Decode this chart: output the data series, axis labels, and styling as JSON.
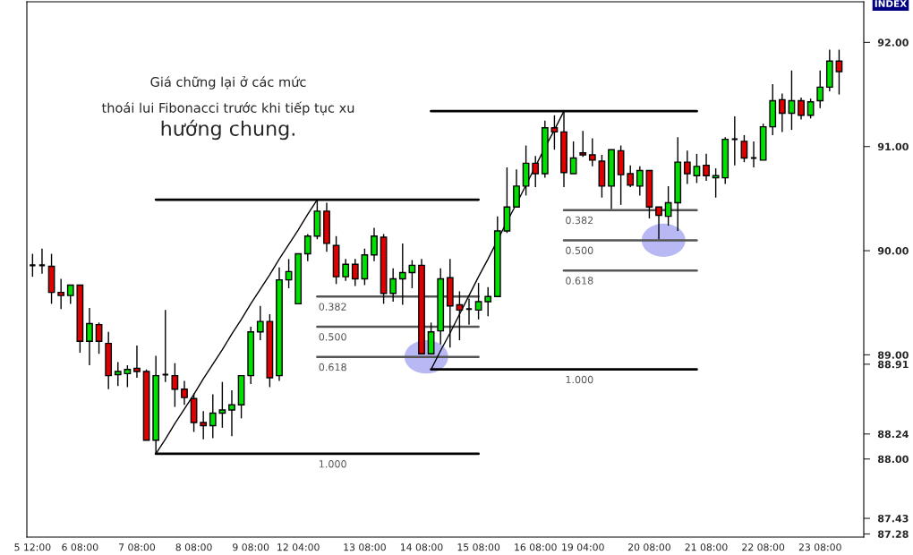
{
  "chart_data": {
    "type": "candlestick",
    "categories": [
      "5 12:00",
      null,
      null,
      null,
      null,
      "6 08:00",
      null,
      null,
      null,
      null,
      null,
      "7 08:00",
      null,
      null,
      null,
      null,
      null,
      "8 08:00",
      null,
      null,
      null,
      null,
      null,
      "9 08:00",
      null,
      null,
      null,
      null,
      "12 04:00",
      null,
      null,
      null,
      null,
      null,
      null,
      "13 08:00",
      null,
      null,
      null,
      null,
      null,
      "14 08:00",
      null,
      null,
      null,
      null,
      null,
      "15 08:00",
      null,
      null,
      null,
      null,
      null,
      "16 08:00",
      null,
      null,
      null,
      null,
      "19 04:00",
      null,
      null,
      null,
      null,
      null,
      null,
      "20 08:00",
      null,
      null,
      null,
      null,
      null,
      "21 08:00",
      null,
      null,
      null,
      null,
      null,
      "22 08:00",
      null,
      null,
      null,
      null,
      null,
      "23 08:00",
      null,
      null
    ],
    "ohlc": [
      [
        89.86,
        89.97,
        89.75,
        89.86
      ],
      [
        89.86,
        90.02,
        89.78,
        89.86
      ],
      [
        89.85,
        89.97,
        89.49,
        89.6
      ],
      [
        89.6,
        89.73,
        89.44,
        89.57
      ],
      [
        89.57,
        89.67,
        89.49,
        89.67
      ],
      [
        89.67,
        89.67,
        89.02,
        89.13
      ],
      [
        89.13,
        89.45,
        88.9,
        89.3
      ],
      [
        89.29,
        89.31,
        89.01,
        89.13
      ],
      [
        89.11,
        89.22,
        88.67,
        88.8
      ],
      [
        88.81,
        88.93,
        88.7,
        88.84
      ],
      [
        88.82,
        88.9,
        88.69,
        88.86
      ],
      [
        88.87,
        89.09,
        88.78,
        88.84
      ],
      [
        88.84,
        88.86,
        88.18,
        88.18
      ],
      [
        88.18,
        88.99,
        88.05,
        88.8
      ],
      [
        88.81,
        89.43,
        88.74,
        88.81
      ],
      [
        88.8,
        88.92,
        88.5,
        88.67
      ],
      [
        88.67,
        88.75,
        88.52,
        88.59
      ],
      [
        88.58,
        88.63,
        88.26,
        88.35
      ],
      [
        88.35,
        88.46,
        88.19,
        88.32
      ],
      [
        88.32,
        88.62,
        88.2,
        88.44
      ],
      [
        88.44,
        88.74,
        88.3,
        88.47
      ],
      [
        88.47,
        88.66,
        88.22,
        88.52
      ],
      [
        88.52,
        88.8,
        88.39,
        88.8
      ],
      [
        88.8,
        89.27,
        88.72,
        89.22
      ],
      [
        89.22,
        89.47,
        89.14,
        89.32
      ],
      [
        89.32,
        89.39,
        88.69,
        88.78
      ],
      [
        88.8,
        89.84,
        88.75,
        89.72
      ],
      [
        89.72,
        89.92,
        89.64,
        89.8
      ],
      [
        89.49,
        89.97,
        89.49,
        89.97
      ],
      [
        89.97,
        90.16,
        89.9,
        90.14
      ],
      [
        90.14,
        90.49,
        90.11,
        90.38
      ],
      [
        90.38,
        90.46,
        89.99,
        90.07
      ],
      [
        90.05,
        90.14,
        89.68,
        89.75
      ],
      [
        89.75,
        89.92,
        89.71,
        89.87
      ],
      [
        89.87,
        89.92,
        89.66,
        89.73
      ],
      [
        89.73,
        90.02,
        89.67,
        89.96
      ],
      [
        89.96,
        90.22,
        89.9,
        90.14
      ],
      [
        90.13,
        90.16,
        89.49,
        89.59
      ],
      [
        89.59,
        89.83,
        89.51,
        89.73
      ],
      [
        89.73,
        90.07,
        89.48,
        89.79
      ],
      [
        89.79,
        89.91,
        89.64,
        89.86
      ],
      [
        89.86,
        89.92,
        89.01,
        89.01
      ],
      [
        89.01,
        89.31,
        89.01,
        89.22
      ],
      [
        89.23,
        89.83,
        89.1,
        89.73
      ],
      [
        89.74,
        89.92,
        89.07,
        89.47
      ],
      [
        89.48,
        89.61,
        89.14,
        89.43
      ],
      [
        89.44,
        89.54,
        89.29,
        89.44
      ],
      [
        89.43,
        89.69,
        89.34,
        89.51
      ],
      [
        89.51,
        89.65,
        89.37,
        89.56
      ],
      [
        89.56,
        90.33,
        89.56,
        90.19
      ],
      [
        90.19,
        90.8,
        90.17,
        90.42
      ],
      [
        90.42,
        90.78,
        90.42,
        90.62
      ],
      [
        90.62,
        91.01,
        90.53,
        90.84
      ],
      [
        90.84,
        90.91,
        90.61,
        90.74
      ],
      [
        90.74,
        91.25,
        90.7,
        91.18
      ],
      [
        91.18,
        91.3,
        90.97,
        91.14
      ],
      [
        91.14,
        91.34,
        90.61,
        90.75
      ],
      [
        90.74,
        91.05,
        90.74,
        90.89
      ],
      [
        90.94,
        91.15,
        90.9,
        90.92
      ],
      [
        90.92,
        91.08,
        90.81,
        90.87
      ],
      [
        90.86,
        90.92,
        90.51,
        90.62
      ],
      [
        90.62,
        90.97,
        90.4,
        90.97
      ],
      [
        90.96,
        91.01,
        90.44,
        90.73
      ],
      [
        90.74,
        90.82,
        90.61,
        90.63
      ],
      [
        90.62,
        90.81,
        90.53,
        90.77
      ],
      [
        90.77,
        90.77,
        90.31,
        90.42
      ],
      [
        90.42,
        90.42,
        90.11,
        90.34
      ],
      [
        90.33,
        90.62,
        90.24,
        90.46
      ],
      [
        90.46,
        91.09,
        90.19,
        90.85
      ],
      [
        90.85,
        90.96,
        90.64,
        90.74
      ],
      [
        90.72,
        90.93,
        90.65,
        90.81
      ],
      [
        90.82,
        90.93,
        90.67,
        90.72
      ],
      [
        90.7,
        90.79,
        90.51,
        90.72
      ],
      [
        90.7,
        91.09,
        90.64,
        91.07
      ],
      [
        91.07,
        91.29,
        90.82,
        91.07
      ],
      [
        91.05,
        91.11,
        90.85,
        90.89
      ],
      [
        90.89,
        91.05,
        90.8,
        90.89
      ],
      [
        90.87,
        91.22,
        90.87,
        91.19
      ],
      [
        91.19,
        91.6,
        91.11,
        91.44
      ],
      [
        91.45,
        91.51,
        91.14,
        91.32
      ],
      [
        91.32,
        91.73,
        91.16,
        91.44
      ],
      [
        91.44,
        91.47,
        91.26,
        91.3
      ],
      [
        91.3,
        91.46,
        91.27,
        91.43
      ],
      [
        91.44,
        91.73,
        91.37,
        91.57
      ],
      [
        91.57,
        91.93,
        91.53,
        91.82
      ],
      [
        91.82,
        91.93,
        91.5,
        91.72
      ]
    ],
    "colors": [
      "#000000",
      "#000000",
      "#e00000",
      "#e00000",
      "#00e000",
      "#e00000",
      "#00e000",
      "#e00000",
      "#e00000",
      "#00e000",
      "#00e000",
      "#e00000",
      "#e00000",
      "#00e000",
      "#000000",
      "#e00000",
      "#e00000",
      "#e00000",
      "#e00000",
      "#00e000",
      "#00e000",
      "#00e000",
      "#00e000",
      "#00e000",
      "#00e000",
      "#e00000",
      "#00e000",
      "#00e000",
      "#00e000",
      "#00e000",
      "#00e000",
      "#e00000",
      "#e00000",
      "#00e000",
      "#e00000",
      "#00e000",
      "#00e000",
      "#e00000",
      "#00e000",
      "#00e000",
      "#00e000",
      "#e00000",
      "#00e000",
      "#00e000",
      "#e00000",
      "#e00000",
      "#000000",
      "#00e000",
      "#00e000",
      "#00e000",
      "#00e000",
      "#00e000",
      "#00e000",
      "#e00000",
      "#00e000",
      "#e00000",
      "#e00000",
      "#00e000",
      "#e00000",
      "#e00000",
      "#e00000",
      "#00e000",
      "#e00000",
      "#e00000",
      "#00e000",
      "#e00000",
      "#e00000",
      "#00e000",
      "#00e000",
      "#e00000",
      "#00e000",
      "#e00000",
      "#00e000",
      "#00e000",
      "#000000",
      "#e00000",
      "#000000",
      "#00e000",
      "#00e000",
      "#e00000",
      "#00e000",
      "#e00000",
      "#00e000",
      "#00e000",
      "#00e000",
      "#e00000"
    ],
    "series": [
      {
        "type": "line",
        "color": "#000000",
        "values": [
          null,
          null,
          null,
          null,
          null,
          null,
          null,
          null,
          null,
          null,
          null,
          null,
          null,
          90.49,
          90.49,
          90.49,
          90.49,
          90.49,
          90.49,
          90.49,
          90.49,
          90.49,
          90.49,
          90.49,
          90.49,
          90.49,
          90.49,
          90.49,
          90.49,
          90.49,
          90.49,
          90.49,
          90.49,
          90.49,
          90.49,
          90.49,
          90.49,
          90.49,
          90.49,
          90.49,
          90.49,
          90.49,
          90.49,
          90.49,
          90.49,
          90.49,
          90.49,
          90.49,
          null,
          null,
          null,
          null,
          null,
          null,
          null,
          null,
          null,
          null,
          null,
          null,
          null,
          null,
          null,
          null,
          null,
          null,
          null,
          null,
          null,
          null,
          null,
          null,
          null,
          null,
          null,
          null,
          null,
          null,
          null,
          null,
          null,
          null,
          null,
          null,
          null,
          null
        ]
      },
      {
        "type": "line",
        "color": "#555555",
        "values": [
          null,
          null,
          null,
          null,
          null,
          null,
          null,
          null,
          null,
          null,
          null,
          null,
          null,
          null,
          null,
          null,
          null,
          null,
          null,
          null,
          null,
          null,
          null,
          null,
          null,
          null,
          null,
          null,
          null,
          null,
          89.56,
          89.56,
          89.56,
          89.56,
          89.56,
          89.56,
          89.56,
          89.56,
          89.56,
          89.56,
          89.56,
          89.56,
          89.56,
          89.56,
          89.56,
          89.56,
          89.56,
          89.56,
          null,
          null,
          null,
          null,
          null,
          null,
          null,
          null,
          null,
          null,
          null,
          null,
          null,
          null,
          null,
          null,
          null,
          null,
          null,
          null,
          null,
          null,
          null,
          null,
          null,
          null,
          null,
          null,
          null,
          null,
          null,
          null,
          null,
          null,
          null,
          null,
          null,
          null
        ]
      },
      {
        "type": "line",
        "color": "#555555",
        "values": [
          null,
          null,
          null,
          null,
          null,
          null,
          null,
          null,
          null,
          null,
          null,
          null,
          null,
          null,
          null,
          null,
          null,
          null,
          null,
          null,
          null,
          null,
          null,
          null,
          null,
          null,
          null,
          null,
          null,
          null,
          89.27,
          89.27,
          89.27,
          89.27,
          89.27,
          89.27,
          89.27,
          89.27,
          89.27,
          89.27,
          89.27,
          89.27,
          89.27,
          89.27,
          89.27,
          89.27,
          89.27,
          89.27,
          null,
          null,
          null,
          null,
          null,
          null,
          null,
          null,
          null,
          null,
          null,
          null,
          null,
          null,
          null,
          null,
          null,
          null,
          null,
          null,
          null,
          null,
          null,
          null,
          null,
          null,
          null,
          null,
          null,
          null,
          null,
          null,
          null,
          null,
          null,
          null,
          null,
          null
        ]
      },
      {
        "type": "line",
        "color": "#555555",
        "values": [
          null,
          null,
          null,
          null,
          null,
          null,
          null,
          null,
          null,
          null,
          null,
          null,
          null,
          null,
          null,
          null,
          null,
          null,
          null,
          null,
          null,
          null,
          null,
          null,
          null,
          null,
          null,
          null,
          null,
          null,
          88.98,
          88.98,
          88.98,
          88.98,
          88.98,
          88.98,
          88.98,
          88.98,
          88.98,
          88.98,
          88.98,
          88.98,
          88.98,
          88.98,
          88.98,
          88.98,
          88.98,
          88.98,
          null,
          null,
          null,
          null,
          null,
          null,
          null,
          null,
          null,
          null,
          null,
          null,
          null,
          null,
          null,
          null,
          null,
          null,
          null,
          null,
          null,
          null,
          null,
          null,
          null,
          null,
          null,
          null,
          null,
          null,
          null,
          null,
          null,
          null,
          null,
          null,
          null,
          null
        ]
      },
      {
        "type": "line",
        "color": "#000000",
        "values": [
          null,
          null,
          null,
          null,
          null,
          null,
          null,
          null,
          null,
          null,
          null,
          null,
          null,
          88.05,
          88.05,
          88.05,
          88.05,
          88.05,
          88.05,
          88.05,
          88.05,
          88.05,
          88.05,
          88.05,
          88.05,
          88.05,
          88.05,
          88.05,
          88.05,
          88.05,
          88.05,
          88.05,
          88.05,
          88.05,
          88.05,
          88.05,
          88.05,
          88.05,
          88.05,
          88.05,
          88.05,
          88.05,
          88.05,
          88.05,
          88.05,
          88.05,
          88.05,
          88.05,
          null,
          null,
          null,
          null,
          null,
          null,
          null,
          null,
          null,
          null,
          null,
          null,
          null,
          null,
          null,
          null,
          null,
          null,
          null,
          null,
          null,
          null,
          null,
          null,
          null,
          null,
          null,
          null,
          null,
          null,
          null,
          null,
          null,
          null,
          null,
          null,
          null,
          null
        ]
      },
      {
        "type": "line",
        "color": "#000000",
        "values": [
          null,
          null,
          null,
          null,
          null,
          null,
          null,
          null,
          null,
          null,
          null,
          null,
          null,
          88.05,
          88.19,
          88.34,
          88.48,
          88.62,
          88.77,
          88.91,
          89.05,
          89.2,
          89.34,
          89.49,
          89.63,
          89.77,
          89.92,
          90.06,
          90.2,
          90.35,
          90.49,
          null,
          null,
          null,
          null,
          null,
          null,
          null,
          null,
          null,
          null,
          null,
          null,
          null,
          null,
          null,
          null,
          null,
          null,
          null,
          null,
          null,
          null,
          null,
          null,
          null,
          null,
          null,
          null,
          null,
          null,
          null,
          null,
          null,
          null,
          null,
          null,
          null,
          null,
          null,
          null,
          null,
          null,
          null,
          null,
          null,
          null,
          null,
          null,
          null,
          null,
          null,
          null,
          null,
          null,
          null
        ]
      },
      {
        "type": "line",
        "color": "#000000",
        "values": [
          null,
          null,
          null,
          null,
          null,
          null,
          null,
          null,
          null,
          null,
          null,
          null,
          null,
          null,
          null,
          null,
          null,
          null,
          null,
          null,
          null,
          null,
          null,
          null,
          null,
          null,
          null,
          null,
          null,
          null,
          null,
          null,
          null,
          null,
          null,
          null,
          null,
          null,
          null,
          null,
          null,
          null,
          91.34,
          91.34,
          91.34,
          91.34,
          91.34,
          91.34,
          91.34,
          91.34,
          91.34,
          91.34,
          91.34,
          91.34,
          91.34,
          91.34,
          91.34,
          91.34,
          91.34,
          91.34,
          91.34,
          91.34,
          91.34,
          91.34,
          91.34,
          91.34,
          91.34,
          91.34,
          91.34,
          91.34,
          91.34,
          null,
          null,
          null,
          null,
          null,
          null,
          null,
          null,
          null,
          null,
          null,
          null,
          null,
          null,
          null
        ]
      },
      {
        "type": "line",
        "color": "#555555",
        "values": [
          null,
          null,
          null,
          null,
          null,
          null,
          null,
          null,
          null,
          null,
          null,
          null,
          null,
          null,
          null,
          null,
          null,
          null,
          null,
          null,
          null,
          null,
          null,
          null,
          null,
          null,
          null,
          null,
          null,
          null,
          null,
          null,
          null,
          null,
          null,
          null,
          null,
          null,
          null,
          null,
          null,
          null,
          null,
          null,
          null,
          null,
          null,
          null,
          null,
          null,
          null,
          null,
          null,
          null,
          null,
          null,
          90.39,
          90.39,
          90.39,
          90.39,
          90.39,
          90.39,
          90.39,
          90.39,
          90.39,
          90.39,
          90.39,
          90.39,
          90.39,
          90.39,
          90.39,
          null,
          null,
          null,
          null,
          null,
          null,
          null,
          null,
          null,
          null,
          null,
          null,
          null,
          null,
          null
        ]
      },
      {
        "type": "line",
        "color": "#555555",
        "values": [
          null,
          null,
          null,
          null,
          null,
          null,
          null,
          null,
          null,
          null,
          null,
          null,
          null,
          null,
          null,
          null,
          null,
          null,
          null,
          null,
          null,
          null,
          null,
          null,
          null,
          null,
          null,
          null,
          null,
          null,
          null,
          null,
          null,
          null,
          null,
          null,
          null,
          null,
          null,
          null,
          null,
          null,
          null,
          null,
          null,
          null,
          null,
          null,
          null,
          null,
          null,
          null,
          null,
          null,
          null,
          null,
          90.1,
          90.1,
          90.1,
          90.1,
          90.1,
          90.1,
          90.1,
          90.1,
          90.1,
          90.1,
          90.1,
          90.1,
          90.1,
          90.1,
          90.1,
          null,
          null,
          null,
          null,
          null,
          null,
          null,
          null,
          null,
          null,
          null,
          null,
          null,
          null,
          null
        ]
      },
      {
        "type": "line",
        "color": "#555555",
        "values": [
          null,
          null,
          null,
          null,
          null,
          null,
          null,
          null,
          null,
          null,
          null,
          null,
          null,
          null,
          null,
          null,
          null,
          null,
          null,
          null,
          null,
          null,
          null,
          null,
          null,
          null,
          null,
          null,
          null,
          null,
          null,
          null,
          null,
          null,
          null,
          null,
          null,
          null,
          null,
          null,
          null,
          null,
          null,
          null,
          null,
          null,
          null,
          null,
          null,
          null,
          null,
          null,
          null,
          null,
          null,
          null,
          89.81,
          89.81,
          89.81,
          89.81,
          89.81,
          89.81,
          89.81,
          89.81,
          89.81,
          89.81,
          89.81,
          89.81,
          89.81,
          89.81,
          89.81,
          null,
          null,
          null,
          null,
          null,
          null,
          null,
          null,
          null,
          null,
          null,
          null,
          null,
          null,
          null
        ]
      },
      {
        "type": "line",
        "color": "#000000",
        "values": [
          null,
          null,
          null,
          null,
          null,
          null,
          null,
          null,
          null,
          null,
          null,
          null,
          null,
          null,
          null,
          null,
          null,
          null,
          null,
          null,
          null,
          null,
          null,
          null,
          null,
          null,
          null,
          null,
          null,
          null,
          null,
          null,
          null,
          null,
          null,
          null,
          null,
          null,
          null,
          null,
          null,
          null,
          88.86,
          88.86,
          88.86,
          88.86,
          88.86,
          88.86,
          88.86,
          88.86,
          88.86,
          88.86,
          88.86,
          88.86,
          88.86,
          88.86,
          88.86,
          88.86,
          88.86,
          88.86,
          88.86,
          88.86,
          88.86,
          88.86,
          88.86,
          88.86,
          88.86,
          88.86,
          88.86,
          88.86,
          88.86,
          null,
          null,
          null,
          null,
          null,
          null,
          null,
          null,
          null,
          null,
          null,
          null,
          null,
          null,
          null
        ]
      },
      {
        "type": "line",
        "color": "#000000",
        "values": [
          null,
          null,
          null,
          null,
          null,
          null,
          null,
          null,
          null,
          null,
          null,
          null,
          null,
          null,
          null,
          null,
          null,
          null,
          null,
          null,
          null,
          null,
          null,
          null,
          null,
          null,
          null,
          null,
          null,
          null,
          null,
          null,
          null,
          null,
          null,
          null,
          null,
          null,
          null,
          null,
          null,
          null,
          88.86,
          89.04,
          89.21,
          89.39,
          89.57,
          89.75,
          89.92,
          90.1,
          90.28,
          90.45,
          90.63,
          90.81,
          90.99,
          91.16,
          91.34,
          null,
          null,
          null,
          null,
          null,
          null,
          null,
          null,
          null,
          null,
          null,
          null,
          null,
          null,
          null,
          null,
          null,
          null,
          null,
          null,
          null,
          null,
          null,
          null,
          null,
          null,
          null,
          null,
          null
        ]
      }
    ],
    "ylim": [
      87.25,
      92.39
    ],
    "yticks": [
      {
        "value": 88,
        "label": "88.00"
      },
      {
        "value": 89,
        "label": "89.00"
      },
      {
        "value": 90,
        "label": "90.00"
      },
      {
        "value": 91,
        "label": "91.00"
      },
      {
        "value": 92,
        "label": "92.00"
      },
      88.91,
      88.24,
      87.43,
      87.28
    ],
    "annotations": [
      "Giá chững lại ở các mức\nthoái lui Fibonacci trước khi tiếp tục xu",
      "hướng chung.",
      "INDEX",
      {
        "text": "0.382",
        "y": 89.56
      },
      {
        "text": "0.500",
        "y": 89.27
      },
      {
        "text": "0.618",
        "y": 88.98
      },
      {
        "text": "1.000",
        "y": 88.05
      },
      {
        "text": "0.382",
        "y": 90.39
      },
      {
        "text": "0.500",
        "y": 90.1
      },
      {
        "text": "0.618",
        "y": 89.81
      },
      {
        "text": "1.000",
        "y": 88.86
      }
    ]
  }
}
